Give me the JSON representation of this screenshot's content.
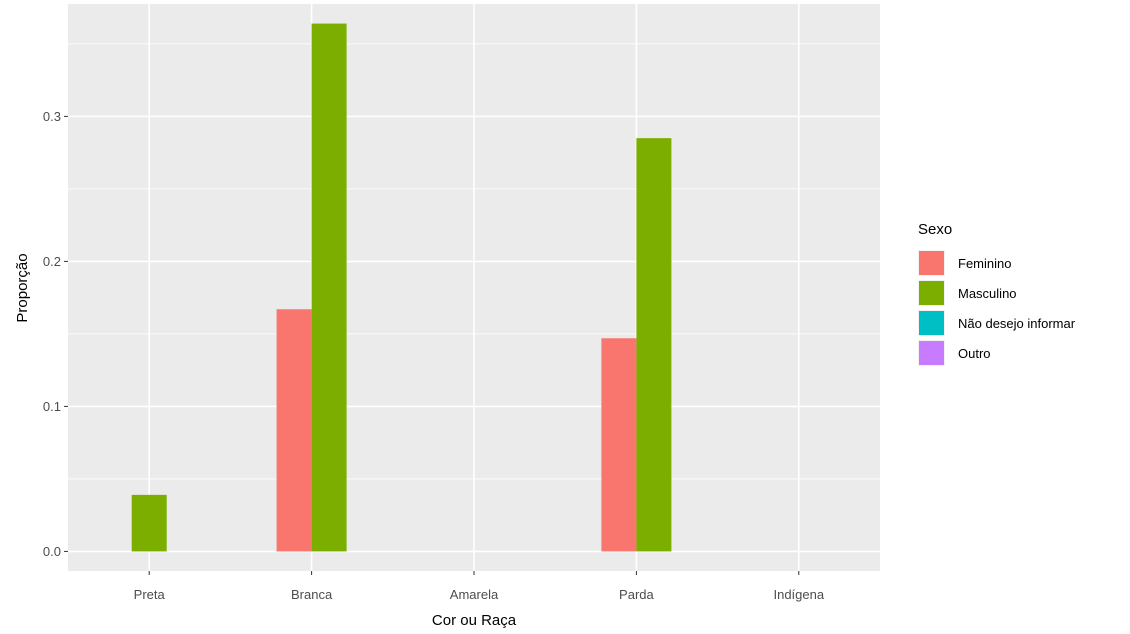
{
  "chart_data": {
    "type": "bar",
    "xlabel": "Cor ou Raça",
    "ylabel": "Proporção",
    "categories": [
      "Preta",
      "Branca",
      "Amarela",
      "Parda",
      "Indígena"
    ],
    "ylim": [
      -0.0135,
      0.3775
    ],
    "yticks": [
      0.0,
      0.1,
      0.2,
      0.3
    ],
    "ytick_labels": [
      "0.0",
      "0.1",
      "0.2",
      "0.3"
    ],
    "grid": true,
    "legend": {
      "title": "Sexo",
      "placement": "right",
      "entries": [
        "Feminino",
        "Masculino",
        "Não desejo informar",
        "Outro"
      ]
    },
    "series": [
      {
        "name": "Feminino",
        "color": "#F8766D",
        "values": [
          null,
          0.167,
          null,
          0.147,
          null
        ]
      },
      {
        "name": "Masculino",
        "color": "#7CAE00",
        "values": [
          0.039,
          0.364,
          null,
          0.285,
          null
        ]
      },
      {
        "name": "Não desejo informar",
        "color": "#00BFC4",
        "values": [
          null,
          null,
          null,
          null,
          null
        ]
      },
      {
        "name": "Outro",
        "color": "#C77CFF",
        "values": [
          null,
          null,
          null,
          null,
          null
        ]
      }
    ],
    "bar_groups": {
      "Preta": [
        "Masculino"
      ],
      "Branca": [
        "Feminino",
        "Masculino"
      ],
      "Amarela": [],
      "Parda": [
        "Feminino",
        "Masculino"
      ],
      "Indígena": []
    },
    "colors": {
      "panel_background": "#EBEBEB",
      "grid": "#FFFFFF"
    }
  }
}
